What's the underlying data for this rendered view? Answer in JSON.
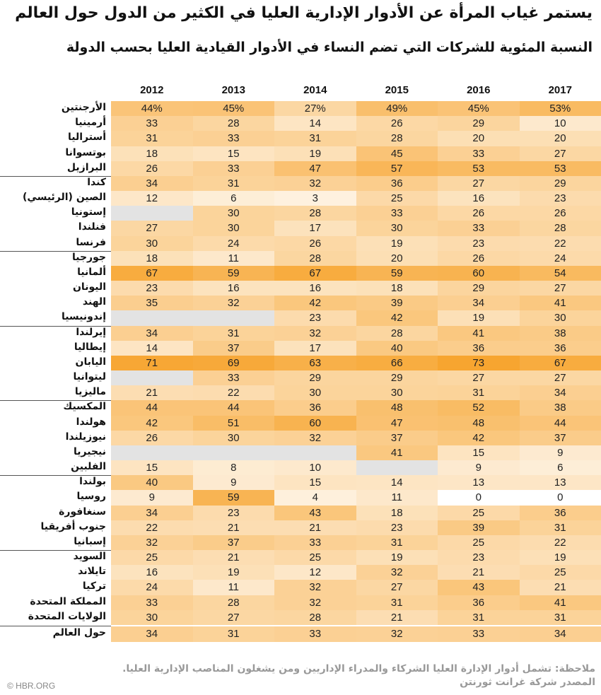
{
  "colors": {
    "low": "#ffffff",
    "high": "#f7a530",
    "missing": "#e3e3e3"
  },
  "chart_data": {
    "type": "heatmap",
    "title": "يستمر غياب المرأة عن الأدوار الإدارية العليا في الكثير من الدول حول العالم",
    "subtitle": "النسبة المئوية للشركات التي تضم النساء في الأدوار القيادية العليا بحسب الدولة",
    "columns": [
      "2012",
      "2013",
      "2014",
      "2015",
      "2016",
      "2017"
    ],
    "value_range": [
      0,
      73
    ],
    "first_row_suffix": "%",
    "rows": [
      {
        "label": "الأرجنتين",
        "values": [
          44,
          45,
          27,
          49,
          45,
          53
        ]
      },
      {
        "label": "أرمينيا",
        "values": [
          33,
          28,
          14,
          26,
          29,
          10
        ]
      },
      {
        "label": "أستراليا",
        "values": [
          31,
          33,
          31,
          28,
          20,
          20
        ]
      },
      {
        "label": "بوتسوانا",
        "values": [
          18,
          15,
          19,
          45,
          33,
          27
        ]
      },
      {
        "label": "البرازيل",
        "values": [
          26,
          33,
          47,
          57,
          53,
          53
        ]
      },
      {
        "label": "كندا",
        "values": [
          34,
          31,
          32,
          36,
          27,
          29
        ]
      },
      {
        "label": "الصين (الرئيسي)",
        "values": [
          12,
          6,
          3,
          25,
          16,
          23
        ]
      },
      {
        "label": "إستونيا",
        "values": [
          null,
          30,
          28,
          33,
          26,
          26
        ]
      },
      {
        "label": "فنلندا",
        "values": [
          27,
          30,
          17,
          30,
          33,
          28
        ]
      },
      {
        "label": "فرنسا",
        "values": [
          30,
          24,
          26,
          19,
          23,
          22
        ]
      },
      {
        "label": "جورجيا",
        "values": [
          18,
          11,
          28,
          20,
          26,
          24
        ]
      },
      {
        "label": "ألمانيا",
        "values": [
          67,
          59,
          67,
          59,
          60,
          54
        ]
      },
      {
        "label": "اليونان",
        "values": [
          23,
          16,
          16,
          18,
          29,
          27
        ]
      },
      {
        "label": "الهند",
        "values": [
          35,
          32,
          42,
          39,
          34,
          41
        ]
      },
      {
        "label": "إندونيسيا",
        "values": [
          null,
          null,
          23,
          42,
          19,
          30
        ]
      },
      {
        "label": "إيرلندا",
        "values": [
          34,
          31,
          32,
          28,
          41,
          38
        ]
      },
      {
        "label": "إيطاليا",
        "values": [
          14,
          37,
          17,
          40,
          36,
          36
        ]
      },
      {
        "label": "اليابان",
        "values": [
          71,
          69,
          63,
          66,
          73,
          67
        ]
      },
      {
        "label": "ليتوانيا",
        "values": [
          null,
          33,
          29,
          29,
          27,
          27
        ]
      },
      {
        "label": "ماليزيا",
        "values": [
          21,
          22,
          30,
          30,
          31,
          34
        ]
      },
      {
        "label": "المكسيك",
        "values": [
          44,
          44,
          36,
          48,
          52,
          38
        ]
      },
      {
        "label": "هولندا",
        "values": [
          42,
          51,
          60,
          47,
          48,
          44
        ]
      },
      {
        "label": "نيوزيلندا",
        "values": [
          26,
          30,
          32,
          37,
          42,
          37
        ]
      },
      {
        "label": "نيجيريا",
        "values": [
          null,
          null,
          null,
          41,
          15,
          9
        ]
      },
      {
        "label": "الفلبين",
        "values": [
          15,
          8,
          10,
          null,
          9,
          6
        ]
      },
      {
        "label": "بولندا",
        "values": [
          40,
          9,
          15,
          14,
          13,
          13
        ]
      },
      {
        "label": "روسيا",
        "values": [
          9,
          59,
          4,
          11,
          0,
          0
        ]
      },
      {
        "label": "سنغافورة",
        "values": [
          34,
          23,
          43,
          18,
          25,
          36
        ]
      },
      {
        "label": "جنوب أفريقيا",
        "values": [
          22,
          21,
          21,
          23,
          39,
          31
        ]
      },
      {
        "label": "إسبانيا",
        "values": [
          32,
          37,
          33,
          31,
          25,
          22
        ]
      },
      {
        "label": "السويد",
        "values": [
          25,
          21,
          25,
          19,
          23,
          19
        ]
      },
      {
        "label": "تايلاند",
        "values": [
          16,
          19,
          12,
          32,
          21,
          25
        ]
      },
      {
        "label": "تركيا",
        "values": [
          24,
          11,
          32,
          27,
          43,
          21
        ]
      },
      {
        "label": "المملكة المتحدة",
        "values": [
          33,
          28,
          32,
          31,
          36,
          41
        ]
      },
      {
        "label": "الولايات المتحدة",
        "values": [
          30,
          27,
          28,
          21,
          31,
          31
        ]
      },
      {
        "label": "حول العالم",
        "values": [
          34,
          31,
          33,
          32,
          33,
          34
        ]
      }
    ]
  },
  "footer": {
    "note": "ملاحظة: تشمل أدوار الإدارة العليا الشركاء والمدراء الإداريين ومن يشغلون المناصب الإدارية العليا.",
    "source": "المصدر شركة غرانت ثورنتن",
    "credit": "© HBR.ORG"
  }
}
